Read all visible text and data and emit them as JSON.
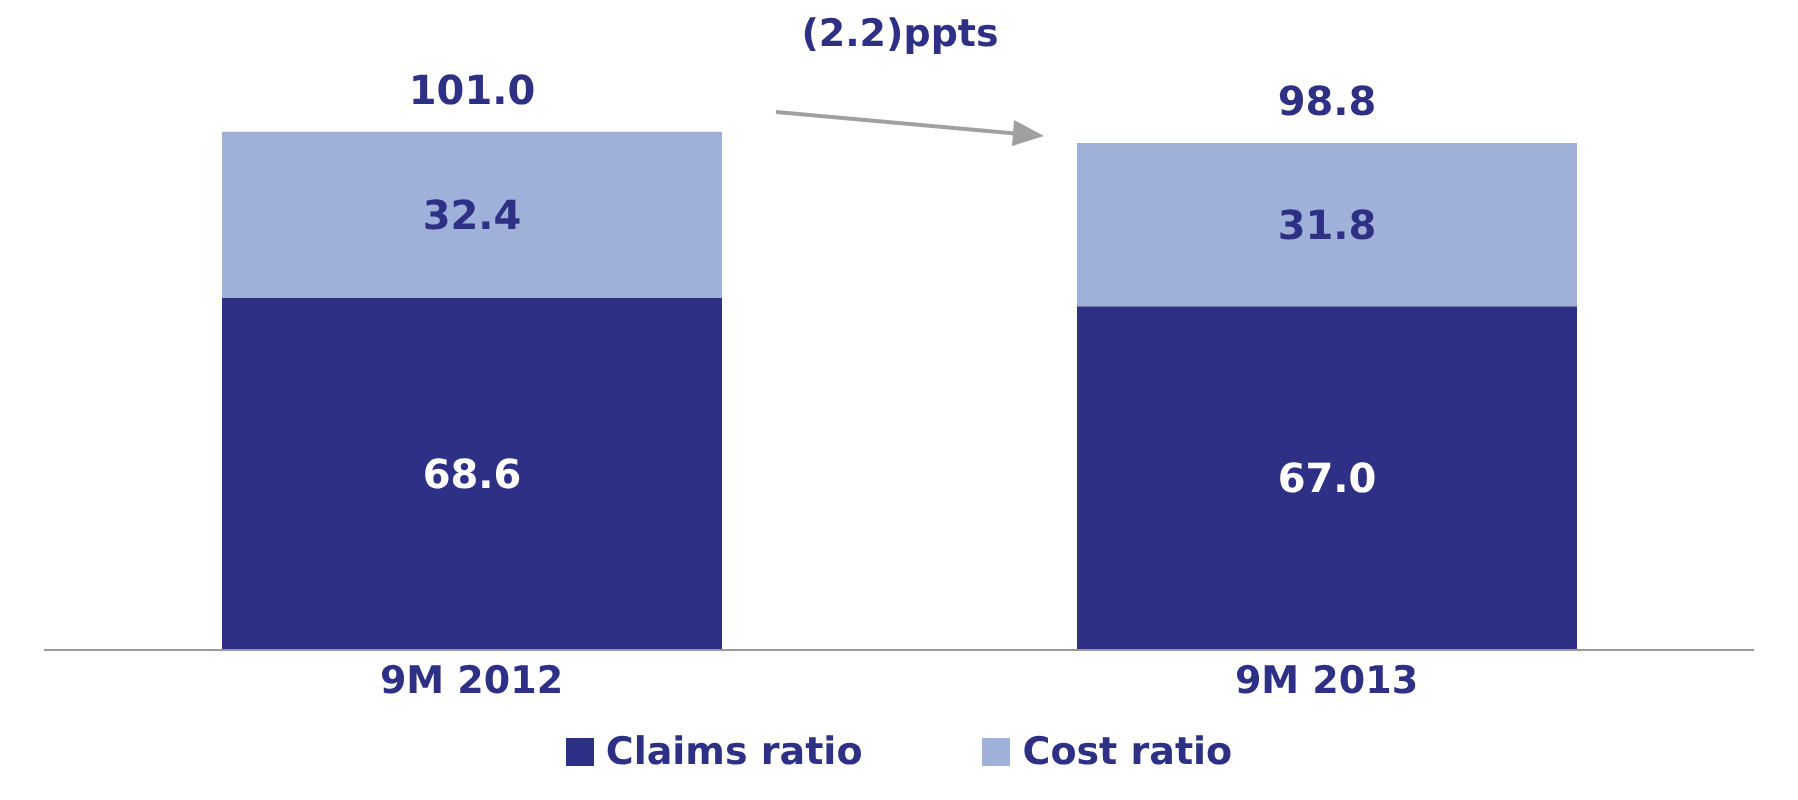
{
  "chart_data": {
    "type": "bar",
    "stacked": true,
    "categories": [
      "9M 2012",
      "9M 2013"
    ],
    "series": [
      {
        "name": "Claims ratio",
        "color": "#2e3085",
        "values": [
          68.6,
          67.0
        ],
        "value_labels": [
          "68.6",
          "67.0"
        ]
      },
      {
        "name": "Cost ratio",
        "color": "#9fb0d9",
        "values": [
          32.4,
          31.8
        ],
        "value_labels": [
          "32.4",
          "31.8"
        ]
      }
    ],
    "totals": [
      "101.0",
      "98.8"
    ],
    "annotations": [
      "(2.2)ppts"
    ],
    "legend": "bottom",
    "grid": false
  }
}
